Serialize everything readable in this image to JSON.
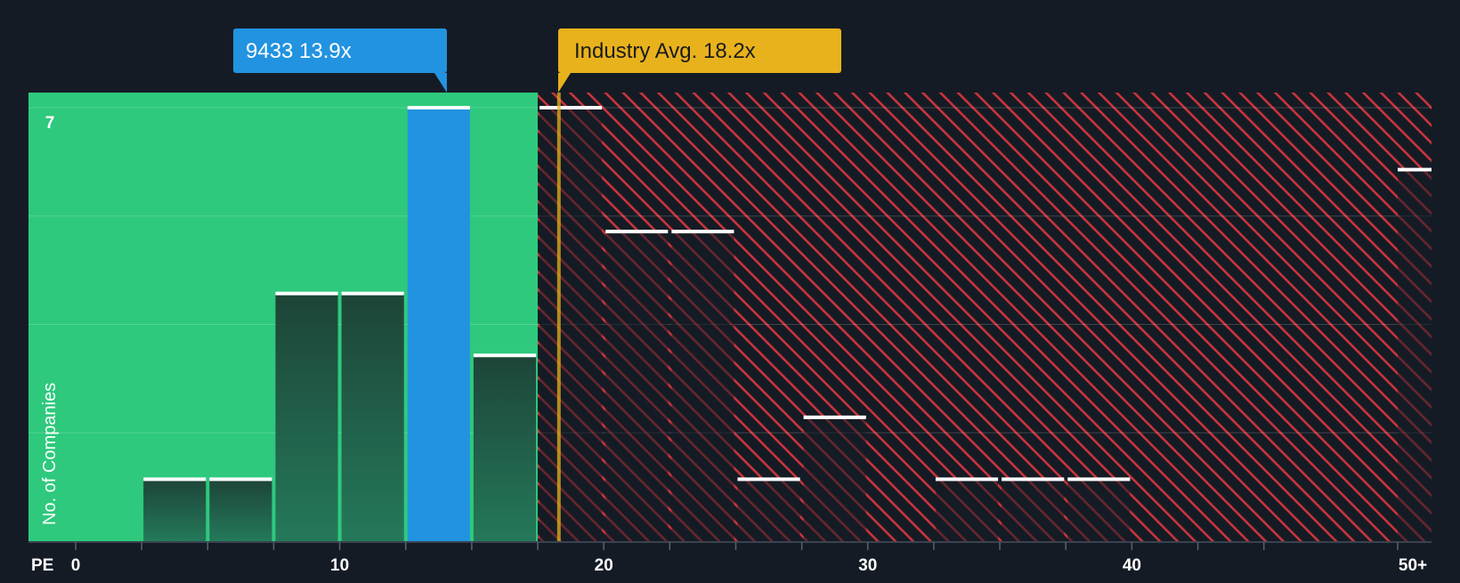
{
  "chart_data": {
    "type": "bar",
    "title": "",
    "xlabel": "PE",
    "ylabel": "No. of Companies",
    "x_ticks": [
      "0",
      "10",
      "20",
      "30",
      "40",
      "50+"
    ],
    "y_ticks": [
      "7"
    ],
    "ylim": [
      0,
      7
    ],
    "bin_width": 2.5,
    "bins": [
      {
        "start": 0,
        "count": 0
      },
      {
        "start": 2.5,
        "count": 1
      },
      {
        "start": 5,
        "count": 1
      },
      {
        "start": 7.5,
        "count": 4
      },
      {
        "start": 10,
        "count": 4
      },
      {
        "start": 12.5,
        "count": 7,
        "highlight": true
      },
      {
        "start": 15,
        "count": 3
      },
      {
        "start": 17.5,
        "count": 7
      },
      {
        "start": 20,
        "count": 5
      },
      {
        "start": 22.5,
        "count": 5
      },
      {
        "start": 25,
        "count": 1
      },
      {
        "start": 27.5,
        "count": 2
      },
      {
        "start": 30,
        "count": 0
      },
      {
        "start": 32.5,
        "count": 1
      },
      {
        "start": 35,
        "count": 1
      },
      {
        "start": 37.5,
        "count": 1
      },
      {
        "start": 50,
        "count": 6,
        "overflow": true
      }
    ],
    "company": {
      "ticker": "9433",
      "pe": 13.9,
      "label": "9433 13.9x"
    },
    "industry": {
      "avg": 18.2,
      "label": "Industry Avg. 18.2x"
    },
    "grid": true,
    "colors": {
      "background": "#151b24",
      "undervalued_zone": "#2ec97d",
      "overvalued_zone": "#c9343d",
      "bar_dark": "#1f4a3c",
      "highlight": "#2293e0",
      "industry": "#e8b21c",
      "cap": "#ffffff",
      "axis_text": "#ffffff"
    }
  }
}
